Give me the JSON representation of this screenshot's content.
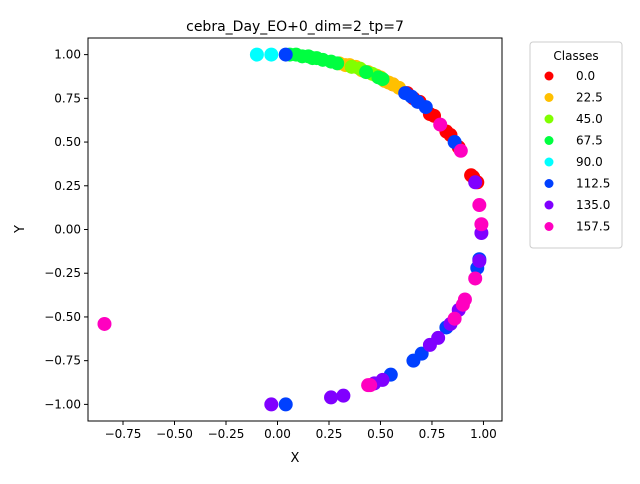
{
  "chart_data": {
    "type": "scatter",
    "title": "cebra_Day_EO+0_dim=2_tp=7",
    "xlabel": "X",
    "ylabel": "Y",
    "xlim": [
      -0.92,
      1.09
    ],
    "ylim": [
      -1.095,
      1.095
    ],
    "xticks": [
      -0.75,
      -0.5,
      -0.25,
      0.0,
      0.25,
      0.5,
      0.75,
      1.0
    ],
    "xtick_labels": [
      "−0.75",
      "−0.50",
      "−0.25",
      "0.00",
      "0.25",
      "0.50",
      "0.75",
      "1.00"
    ],
    "yticks": [
      -1.0,
      -0.75,
      -0.5,
      -0.25,
      0.0,
      0.25,
      0.5,
      0.75,
      1.0
    ],
    "ytick_labels": [
      "−1.00",
      "−0.75",
      "−0.50",
      "−0.25",
      "0.00",
      "0.25",
      "0.50",
      "0.75",
      "1.00"
    ],
    "grid": false,
    "legend": {
      "title": "Classes",
      "placement": "outside-top-right"
    },
    "series": [
      {
        "name": "0.0",
        "color": "#ff0000",
        "points": [
          [
            0.56,
            0.83
          ],
          [
            0.63,
            0.78
          ],
          [
            0.69,
            0.73
          ],
          [
            0.74,
            0.66
          ],
          [
            0.76,
            0.65
          ],
          [
            0.82,
            0.56
          ],
          [
            0.84,
            0.54
          ],
          [
            0.88,
            0.47
          ],
          [
            0.94,
            0.31
          ],
          [
            0.95,
            0.3
          ],
          [
            0.97,
            0.27
          ],
          [
            0.66,
            0.75
          ]
        ]
      },
      {
        "name": "22.5",
        "color": "#ffc000",
        "points": [
          [
            0.3,
            0.95
          ],
          [
            0.33,
            0.94
          ],
          [
            0.35,
            0.94
          ],
          [
            0.38,
            0.93
          ],
          [
            0.41,
            0.91
          ],
          [
            0.44,
            0.9
          ],
          [
            0.48,
            0.88
          ],
          [
            0.5,
            0.87
          ],
          [
            0.52,
            0.85
          ],
          [
            0.54,
            0.84
          ],
          [
            0.56,
            0.83
          ],
          [
            0.59,
            0.81
          ]
        ]
      },
      {
        "name": "45.0",
        "color": "#80ff00",
        "points": [
          [
            0.36,
            0.93
          ],
          [
            0.4,
            0.92
          ],
          [
            0.46,
            0.89
          ]
        ]
      },
      {
        "name": "67.5",
        "color": "#00ff40",
        "points": [
          [
            0.06,
            1.0
          ],
          [
            0.09,
            1.0
          ],
          [
            0.12,
            0.99
          ],
          [
            0.15,
            0.99
          ],
          [
            0.17,
            0.98
          ],
          [
            0.19,
            0.98
          ],
          [
            0.22,
            0.97
          ],
          [
            0.26,
            0.96
          ],
          [
            0.29,
            0.95
          ],
          [
            0.43,
            0.9
          ],
          [
            0.49,
            0.87
          ],
          [
            0.51,
            0.86
          ]
        ]
      },
      {
        "name": "90.0",
        "color": "#00ffff",
        "points": [
          [
            -0.1,
            1.0
          ],
          [
            -0.03,
            1.0
          ]
        ]
      },
      {
        "name": "112.5",
        "color": "#0040ff",
        "points": [
          [
            0.04,
            1.0
          ],
          [
            0.62,
            0.78
          ],
          [
            0.65,
            0.76
          ],
          [
            0.68,
            0.73
          ],
          [
            0.72,
            0.7
          ],
          [
            0.86,
            0.5
          ],
          [
            0.98,
            -0.17
          ],
          [
            0.97,
            -0.22
          ],
          [
            0.82,
            -0.56
          ],
          [
            0.7,
            -0.71
          ],
          [
            0.66,
            -0.75
          ],
          [
            0.55,
            -0.83
          ],
          [
            0.04,
            -1.0
          ]
        ]
      },
      {
        "name": "135.0",
        "color": "#8000ff",
        "points": [
          [
            0.96,
            0.27
          ],
          [
            0.99,
            -0.02
          ],
          [
            0.98,
            -0.18
          ],
          [
            0.88,
            -0.46
          ],
          [
            0.84,
            -0.54
          ],
          [
            0.78,
            -0.62
          ],
          [
            0.74,
            -0.66
          ],
          [
            0.51,
            -0.86
          ],
          [
            0.47,
            -0.88
          ],
          [
            0.32,
            -0.95
          ],
          [
            0.26,
            -0.96
          ],
          [
            -0.03,
            -1.0
          ]
        ]
      },
      {
        "name": "157.5",
        "color": "#ff00c0",
        "points": [
          [
            0.79,
            0.6
          ],
          [
            0.89,
            0.45
          ],
          [
            0.98,
            0.14
          ],
          [
            0.99,
            0.03
          ],
          [
            0.96,
            -0.28
          ],
          [
            0.91,
            -0.4
          ],
          [
            0.9,
            -0.43
          ],
          [
            0.86,
            -0.51
          ],
          [
            0.45,
            -0.89
          ],
          [
            0.44,
            -0.89
          ],
          [
            -0.84,
            -0.54
          ]
        ]
      }
    ]
  }
}
